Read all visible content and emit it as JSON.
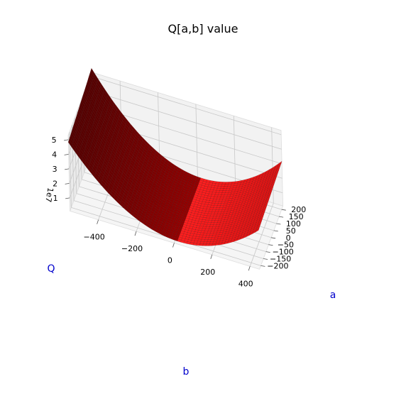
{
  "chart_data": {
    "type": "surface3d",
    "title": "Q[a,b] value",
    "xlabel": "b",
    "ylabel": "a",
    "zlabel": "Q",
    "z_offset_label": "1e7",
    "x_ticks": [
      -400,
      -200,
      0,
      200,
      400
    ],
    "y_ticks": [
      -200,
      -150,
      -100,
      -50,
      0,
      50,
      100,
      150,
      200
    ],
    "z_ticks": [
      1,
      2,
      3,
      4,
      5
    ],
    "xlim": [
      -550,
      450
    ],
    "ylim": [
      -225,
      225
    ],
    "zlim": [
      0.1,
      5.3
    ],
    "surface": {
      "description": "convex paraboloid Q(a,b) = 150 * (b - 25)^2 with slight dependence on a",
      "b_min": -550,
      "b_max": 450,
      "a_min": -225,
      "a_max": 225,
      "min_value": 0.3,
      "max_value": 5.2
    },
    "colors": {
      "surface_light": "#ff1a1a",
      "surface_dark": "#5a0000",
      "axis_label": "#0000cc",
      "pane": "#f2f2f2",
      "grid": "#c8c8c8"
    },
    "grid": true
  }
}
